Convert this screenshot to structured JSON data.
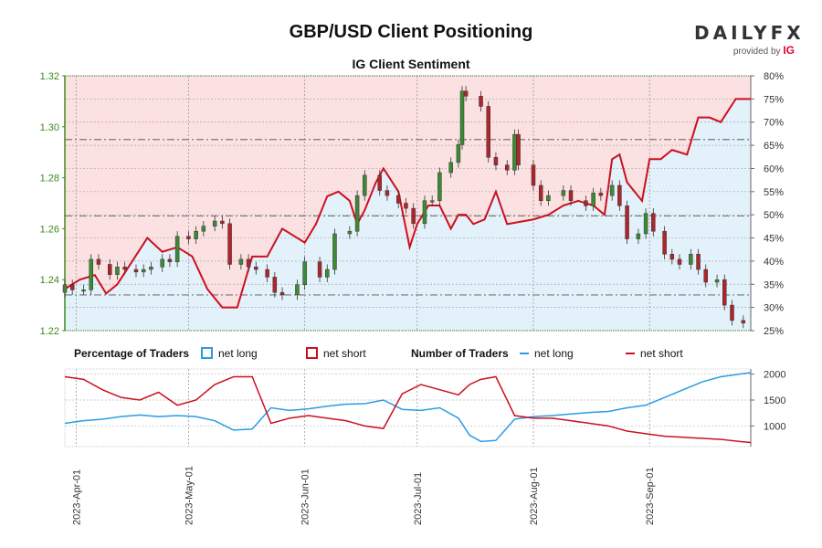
{
  "title": "GBP/USD Client Positioning",
  "subtitle": "IG Client Sentiment",
  "brand": {
    "logo": "DAILYFX",
    "provided_by": "provided by",
    "ig": "IG"
  },
  "legend": {
    "pct_title": "Percentage of Traders",
    "num_title": "Number of Traders",
    "net_long": "net long",
    "net_short": "net short"
  },
  "colors": {
    "long": "#2b9be6",
    "short": "#cc1020",
    "up_candle": "#3d8a34",
    "down_candle": "#b0242c",
    "short_zone": "#fbe1e1",
    "long_zone": "#e3f1fb",
    "price_axis": "#3c8c1e"
  },
  "chart_data": [
    {
      "type": "candlestick",
      "title": "IG Client Sentiment",
      "y_left": {
        "ylim": [
          1.22,
          1.32
        ],
        "ticks": [
          "1.22",
          "1.24",
          "1.26",
          "1.28",
          "1.30",
          "1.32"
        ]
      },
      "y_right": {
        "ylim": [
          25,
          80
        ],
        "ticks": [
          "25%",
          "30%",
          "35%",
          "40%",
          "45%",
          "50%",
          "55%",
          "60%",
          "65%",
          "70%",
          "75%",
          "80%"
        ]
      },
      "x_ticks": [
        "2023-Apr-01",
        "2023-May-01",
        "2023-Jun-01",
        "2023-Jul-01",
        "2023-Aug-01",
        "2023-Sep-01"
      ],
      "x_range": [
        "2023-03-29",
        "2023-09-28"
      ],
      "reference_lines": [
        1.234,
        1.265,
        1.295
      ],
      "close": [
        [
          "2023-03-29",
          1.238
        ],
        [
          "2023-03-31",
          1.236
        ],
        [
          "2023-04-03",
          1.236
        ],
        [
          "2023-04-05",
          1.248
        ],
        [
          "2023-04-07",
          1.246
        ],
        [
          "2023-04-10",
          1.242
        ],
        [
          "2023-04-12",
          1.245
        ],
        [
          "2023-04-14",
          1.244
        ],
        [
          "2023-04-17",
          1.243
        ],
        [
          "2023-04-19",
          1.244
        ],
        [
          "2023-04-21",
          1.245
        ],
        [
          "2023-04-24",
          1.248
        ],
        [
          "2023-04-26",
          1.247
        ],
        [
          "2023-04-28",
          1.257
        ],
        [
          "2023-05-01",
          1.256
        ],
        [
          "2023-05-03",
          1.259
        ],
        [
          "2023-05-05",
          1.261
        ],
        [
          "2023-05-08",
          1.263
        ],
        [
          "2023-05-10",
          1.262
        ],
        [
          "2023-05-12",
          1.246
        ],
        [
          "2023-05-15",
          1.248
        ],
        [
          "2023-05-17",
          1.245
        ],
        [
          "2023-05-19",
          1.244
        ],
        [
          "2023-05-22",
          1.241
        ],
        [
          "2023-05-24",
          1.235
        ],
        [
          "2023-05-26",
          1.234
        ],
        [
          "2023-05-30",
          1.238
        ],
        [
          "2023-06-01",
          1.247
        ],
        [
          "2023-06-05",
          1.241
        ],
        [
          "2023-06-07",
          1.244
        ],
        [
          "2023-06-09",
          1.258
        ],
        [
          "2023-06-13",
          1.259
        ],
        [
          "2023-06-15",
          1.273
        ],
        [
          "2023-06-17",
          1.281
        ],
        [
          "2023-06-21",
          1.275
        ],
        [
          "2023-06-23",
          1.273
        ],
        [
          "2023-06-26",
          1.27
        ],
        [
          "2023-06-28",
          1.268
        ],
        [
          "2023-06-30",
          1.262
        ],
        [
          "2023-07-03",
          1.271
        ],
        [
          "2023-07-05",
          1.271
        ],
        [
          "2023-07-07",
          1.282
        ],
        [
          "2023-07-10",
          1.286
        ],
        [
          "2023-07-12",
          1.293
        ],
        [
          "2023-07-13",
          1.314
        ],
        [
          "2023-07-14",
          1.312
        ],
        [
          "2023-07-18",
          1.308
        ],
        [
          "2023-07-20",
          1.288
        ],
        [
          "2023-07-22",
          1.285
        ],
        [
          "2023-07-25",
          1.283
        ],
        [
          "2023-07-27",
          1.297
        ],
        [
          "2023-07-28",
          1.285
        ],
        [
          "2023-08-01",
          1.277
        ],
        [
          "2023-08-03",
          1.271
        ],
        [
          "2023-08-05",
          1.273
        ],
        [
          "2023-08-09",
          1.275
        ],
        [
          "2023-08-11",
          1.271
        ],
        [
          "2023-08-15",
          1.269
        ],
        [
          "2023-08-17",
          1.274
        ],
        [
          "2023-08-19",
          1.273
        ],
        [
          "2023-08-22",
          1.277
        ],
        [
          "2023-08-24",
          1.269
        ],
        [
          "2023-08-26",
          1.256
        ],
        [
          "2023-08-29",
          1.258
        ],
        [
          "2023-08-31",
          1.266
        ],
        [
          "2023-09-02",
          1.259
        ],
        [
          "2023-09-05",
          1.25
        ],
        [
          "2023-09-07",
          1.248
        ],
        [
          "2023-09-09",
          1.246
        ],
        [
          "2023-09-12",
          1.25
        ],
        [
          "2023-09-14",
          1.244
        ],
        [
          "2023-09-16",
          1.239
        ],
        [
          "2023-09-19",
          1.24
        ],
        [
          "2023-09-21",
          1.23
        ],
        [
          "2023-09-23",
          1.224
        ],
        [
          "2023-09-26",
          1.223
        ]
      ],
      "net_long_pct": [
        [
          "2023-03-29",
          34
        ],
        [
          "2023-04-02",
          36
        ],
        [
          "2023-04-06",
          37
        ],
        [
          "2023-04-09",
          33
        ],
        [
          "2023-04-12",
          35
        ],
        [
          "2023-04-16",
          40
        ],
        [
          "2023-04-20",
          45
        ],
        [
          "2023-04-24",
          42
        ],
        [
          "2023-04-28",
          43
        ],
        [
          "2023-05-02",
          41
        ],
        [
          "2023-05-06",
          34
        ],
        [
          "2023-05-10",
          30
        ],
        [
          "2023-05-14",
          30
        ],
        [
          "2023-05-18",
          41
        ],
        [
          "2023-05-22",
          41
        ],
        [
          "2023-05-26",
          47
        ],
        [
          "2023-05-30",
          45
        ],
        [
          "2023-06-01",
          44
        ],
        [
          "2023-06-04",
          48
        ],
        [
          "2023-06-07",
          54
        ],
        [
          "2023-06-10",
          55
        ],
        [
          "2023-06-13",
          53
        ],
        [
          "2023-06-15",
          48
        ],
        [
          "2023-06-17",
          51
        ],
        [
          "2023-06-20",
          57
        ],
        [
          "2023-06-22",
          60
        ],
        [
          "2023-06-26",
          55
        ],
        [
          "2023-06-29",
          43
        ],
        [
          "2023-07-01",
          48
        ],
        [
          "2023-07-04",
          52
        ],
        [
          "2023-07-07",
          52
        ],
        [
          "2023-07-10",
          47
        ],
        [
          "2023-07-12",
          50
        ],
        [
          "2023-07-14",
          50
        ],
        [
          "2023-07-16",
          48
        ],
        [
          "2023-07-19",
          49
        ],
        [
          "2023-07-22",
          55
        ],
        [
          "2023-07-25",
          48
        ],
        [
          "2023-08-01",
          49
        ],
        [
          "2023-08-05",
          50
        ],
        [
          "2023-08-09",
          52
        ],
        [
          "2023-08-13",
          53
        ],
        [
          "2023-08-17",
          52
        ],
        [
          "2023-08-20",
          50
        ],
        [
          "2023-08-22",
          62
        ],
        [
          "2023-08-24",
          63
        ],
        [
          "2023-08-26",
          57
        ],
        [
          "2023-08-30",
          53
        ],
        [
          "2023-09-01",
          62
        ],
        [
          "2023-09-04",
          62
        ],
        [
          "2023-09-07",
          64
        ],
        [
          "2023-09-11",
          63
        ],
        [
          "2023-09-14",
          71
        ],
        [
          "2023-09-17",
          71
        ],
        [
          "2023-09-20",
          70
        ],
        [
          "2023-09-24",
          75
        ],
        [
          "2023-09-28",
          75
        ]
      ]
    },
    {
      "type": "line",
      "title": "Number of Traders",
      "y_right": {
        "ylim": [
          600,
          2100
        ],
        "ticks": [
          "1000",
          "1500",
          "2000"
        ]
      },
      "series": [
        {
          "name": "net long",
          "values": [
            [
              "2023-03-29",
              1050
            ],
            [
              "2023-04-03",
              1100
            ],
            [
              "2023-04-08",
              1130
            ],
            [
              "2023-04-13",
              1180
            ],
            [
              "2023-04-18",
              1210
            ],
            [
              "2023-04-23",
              1180
            ],
            [
              "2023-04-28",
              1200
            ],
            [
              "2023-05-03",
              1180
            ],
            [
              "2023-05-08",
              1100
            ],
            [
              "2023-05-13",
              920
            ],
            [
              "2023-05-18",
              940
            ],
            [
              "2023-05-23",
              1350
            ],
            [
              "2023-05-28",
              1300
            ],
            [
              "2023-06-02",
              1330
            ],
            [
              "2023-06-07",
              1380
            ],
            [
              "2023-06-12",
              1420
            ],
            [
              "2023-06-17",
              1430
            ],
            [
              "2023-06-22",
              1500
            ],
            [
              "2023-06-27",
              1320
            ],
            [
              "2023-07-02",
              1300
            ],
            [
              "2023-07-07",
              1350
            ],
            [
              "2023-07-12",
              1150
            ],
            [
              "2023-07-15",
              820
            ],
            [
              "2023-07-18",
              700
            ],
            [
              "2023-07-22",
              720
            ],
            [
              "2023-07-27",
              1130
            ],
            [
              "2023-08-01",
              1180
            ],
            [
              "2023-08-06",
              1200
            ],
            [
              "2023-08-11",
              1230
            ],
            [
              "2023-08-16",
              1260
            ],
            [
              "2023-08-21",
              1280
            ],
            [
              "2023-08-26",
              1350
            ],
            [
              "2023-08-31",
              1400
            ],
            [
              "2023-09-05",
              1550
            ],
            [
              "2023-09-10",
              1700
            ],
            [
              "2023-09-15",
              1850
            ],
            [
              "2023-09-20",
              1950
            ],
            [
              "2023-09-25",
              2000
            ],
            [
              "2023-09-28",
              2030
            ]
          ]
        },
        {
          "name": "net short",
          "values": [
            [
              "2023-03-29",
              1950
            ],
            [
              "2023-04-03",
              1900
            ],
            [
              "2023-04-08",
              1700
            ],
            [
              "2023-04-13",
              1550
            ],
            [
              "2023-04-18",
              1500
            ],
            [
              "2023-04-23",
              1650
            ],
            [
              "2023-04-28",
              1400
            ],
            [
              "2023-05-03",
              1500
            ],
            [
              "2023-05-08",
              1800
            ],
            [
              "2023-05-13",
              1950
            ],
            [
              "2023-05-18",
              1950
            ],
            [
              "2023-05-23",
              1050
            ],
            [
              "2023-05-28",
              1150
            ],
            [
              "2023-06-02",
              1200
            ],
            [
              "2023-06-07",
              1150
            ],
            [
              "2023-06-12",
              1100
            ],
            [
              "2023-06-17",
              1000
            ],
            [
              "2023-06-22",
              950
            ],
            [
              "2023-06-27",
              1620
            ],
            [
              "2023-07-02",
              1800
            ],
            [
              "2023-07-07",
              1700
            ],
            [
              "2023-07-12",
              1600
            ],
            [
              "2023-07-15",
              1800
            ],
            [
              "2023-07-18",
              1900
            ],
            [
              "2023-07-22",
              1950
            ],
            [
              "2023-07-27",
              1200
            ],
            [
              "2023-08-01",
              1150
            ],
            [
              "2023-08-06",
              1150
            ],
            [
              "2023-08-11",
              1100
            ],
            [
              "2023-08-16",
              1050
            ],
            [
              "2023-08-21",
              1000
            ],
            [
              "2023-08-26",
              900
            ],
            [
              "2023-08-31",
              850
            ],
            [
              "2023-09-05",
              800
            ],
            [
              "2023-09-10",
              780
            ],
            [
              "2023-09-15",
              760
            ],
            [
              "2023-09-20",
              740
            ],
            [
              "2023-09-25",
              700
            ],
            [
              "2023-09-28",
              680
            ]
          ]
        }
      ]
    }
  ]
}
